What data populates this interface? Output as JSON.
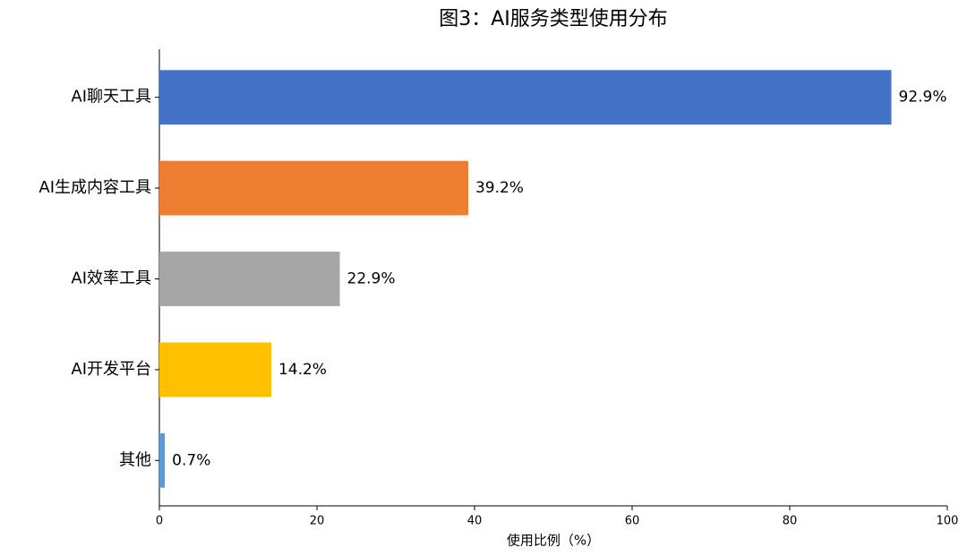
{
  "chart_data": {
    "type": "barh",
    "title": "图3：AI服务类型使用分布",
    "xlabel": "使用比例（%）",
    "categories": [
      "AI聊天工具",
      "AI生成内容工具",
      "AI效率工具",
      "AI开发平台",
      "其他"
    ],
    "values": [
      92.9,
      39.2,
      22.9,
      14.2,
      0.7
    ],
    "value_labels": [
      "92.9%",
      "39.2%",
      "22.9%",
      "14.2%",
      "0.7%"
    ],
    "colors": [
      "#4472c4",
      "#ed7d31",
      "#a5a5a5",
      "#ffc000",
      "#5b9bd5"
    ],
    "xlim": [
      0,
      100
    ],
    "xticks": [
      0,
      20,
      40,
      60,
      80,
      100
    ],
    "grid": false
  }
}
